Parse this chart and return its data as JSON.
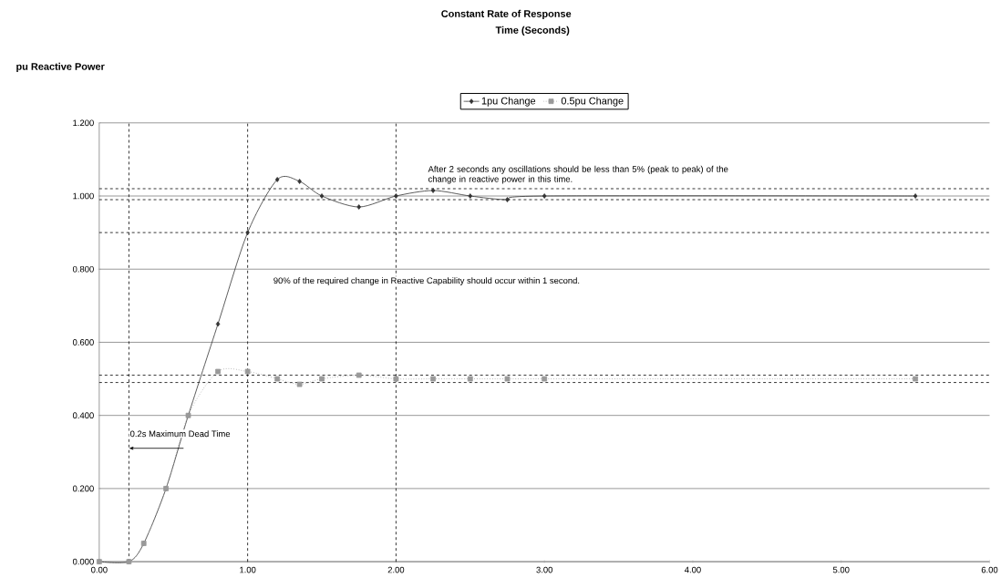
{
  "chart_data": {
    "type": "line",
    "title": "Constant Rate of Response",
    "subtitle": "Time (Seconds)",
    "ylabel": "pu Reactive Power",
    "xlim": [
      0,
      6
    ],
    "ylim": [
      0,
      1.2
    ],
    "xticks": [
      {
        "value": 0,
        "label": "0.00"
      },
      {
        "value": 1,
        "label": "1.00"
      },
      {
        "value": 2,
        "label": "2.00"
      },
      {
        "value": 3,
        "label": "3.00"
      },
      {
        "value": 4,
        "label": "4.00"
      },
      {
        "value": 5,
        "label": "5.00"
      },
      {
        "value": 6,
        "label": "6.00"
      }
    ],
    "yticks": [
      {
        "value": 0,
        "label": "0.000"
      },
      {
        "value": 0.2,
        "label": "0.200"
      },
      {
        "value": 0.4,
        "label": "0.400"
      },
      {
        "value": 0.6,
        "label": "0.600"
      },
      {
        "value": 0.8,
        "label": "0.800"
      },
      {
        "value": 1.0,
        "label": "1.000"
      },
      {
        "value": 1.2,
        "label": "1.200"
      }
    ],
    "grid": "y",
    "legend": "top",
    "series": [
      {
        "name": "1pu Change",
        "color": "#333333",
        "marker": "diamond",
        "line_style": "solid",
        "x": [
          0,
          0.2,
          0.3,
          0.45,
          0.6,
          0.8,
          1.0,
          1.2,
          1.35,
          1.5,
          1.75,
          2.0,
          2.25,
          2.5,
          2.75,
          3.0,
          5.5
        ],
        "values": [
          0,
          0,
          0.05,
          0.2,
          0.4,
          0.65,
          0.9,
          1.045,
          1.04,
          1.0,
          0.97,
          1.0,
          1.015,
          1.0,
          0.99,
          1.0,
          1.0
        ]
      },
      {
        "name": "0.5pu Change",
        "color": "#999999",
        "marker": "square",
        "line_style": "dotted",
        "x": [
          0,
          0.2,
          0.3,
          0.45,
          0.6,
          0.8,
          1.0,
          1.2,
          1.35,
          1.5,
          1.75,
          2.0,
          2.25,
          2.5,
          2.75,
          3.0,
          5.5
        ],
        "values": [
          0,
          0,
          0.05,
          0.2,
          0.4,
          0.52,
          0.52,
          0.5,
          0.485,
          0.5,
          0.51,
          0.5,
          0.5,
          0.5,
          0.5,
          0.5,
          0.5
        ]
      }
    ],
    "ref_lines": [
      {
        "axis": "y",
        "value": 0.9,
        "line_style": "dashed",
        "color": "#000000"
      },
      {
        "axis": "x",
        "value": 0.2,
        "line_style": "dashed",
        "color": "#000000"
      },
      {
        "axis": "x",
        "value": 1.0,
        "line_style": "dashed",
        "color": "#000000"
      },
      {
        "axis": "x",
        "value": 2.0,
        "line_style": "dashed",
        "color": "#000000"
      },
      {
        "axis": "y",
        "value": 1.02,
        "line_style": "dashed",
        "color": "#000000"
      },
      {
        "axis": "y",
        "value": 0.99,
        "line_style": "dashed",
        "color": "#000000"
      },
      {
        "axis": "y",
        "value": 0.51,
        "line_style": "dashed",
        "color": "#000000"
      },
      {
        "axis": "y",
        "value": 0.49,
        "line_style": "dashed",
        "color": "#000000"
      }
    ],
    "annotations": [
      "90% of the required change in Reactive Capability should occur within 1 second.",
      "After 2 seconds any oscillations should be less than 5% (peak to peak) of the change in reactive power in this time.",
      {
        "text": "0.2s Maximum Dead Time",
        "x": 0.2,
        "y": 0.35
      }
    ]
  }
}
